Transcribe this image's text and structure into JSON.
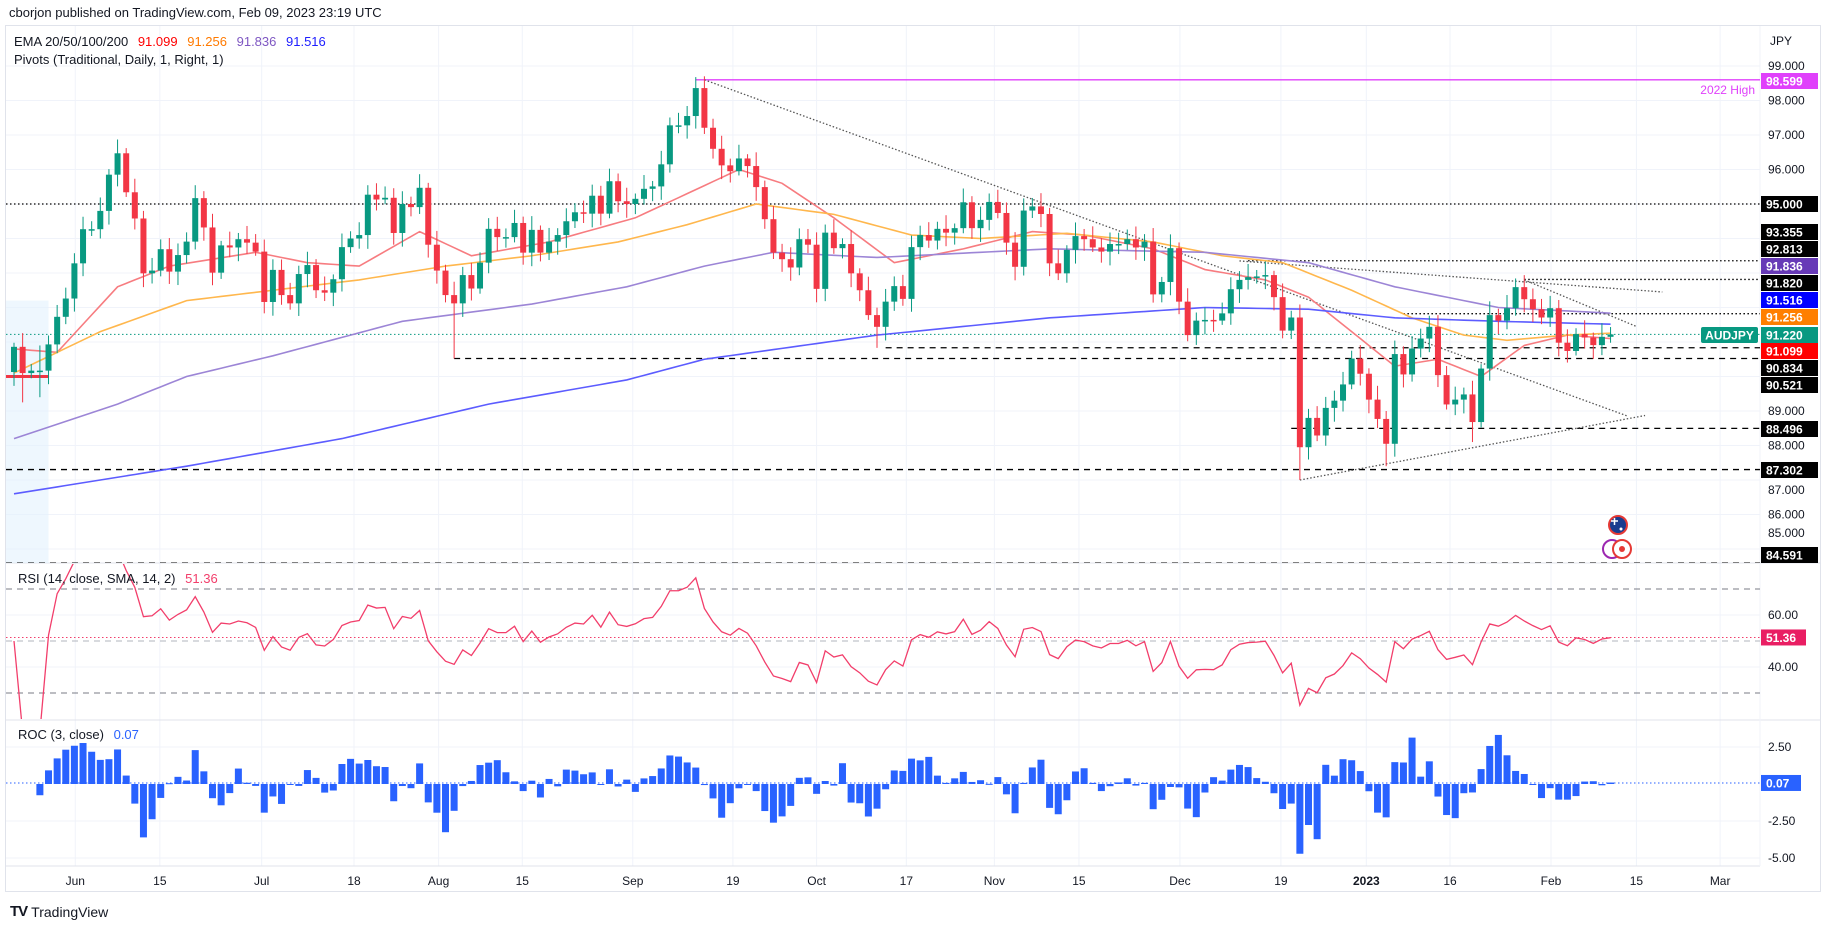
{
  "header": {
    "published": "cborjon published on TradingView.com, Feb 09, 2023 23:19 UTC"
  },
  "legend": {
    "ema_label": "EMA 20/50/100/200",
    "ema_values": [
      {
        "value": "91.099",
        "color": "#ff0000"
      },
      {
        "value": "91.256",
        "color": "#ff7a00"
      },
      {
        "value": "91.836",
        "color": "#7e57c2"
      },
      {
        "value": "91.516",
        "color": "#1e1eff"
      }
    ],
    "pivots_label": "Pivots (Traditional, Daily, 1, Right, 1)",
    "rsi_label": "RSI (14, close, SMA, 14, 2)",
    "rsi_value": "51.36",
    "roc_label": "ROC (3, close)",
    "roc_value": "0.07"
  },
  "footer": {
    "logo_mark": "TV",
    "brand": "TradingView"
  },
  "chart_data": {
    "type": "candlestick",
    "symbol": "AUDJPY",
    "currency": "JPY",
    "last_price": "91.220",
    "first_open": 90.13,
    "closes": [
      90.86,
      90.1,
      90.17,
      90.17,
      90.93,
      91.73,
      92.26,
      93.28,
      94.27,
      94.27,
      94.8,
      95.85,
      96.47,
      95.34,
      94.58,
      92.99,
      93.07,
      93.69,
      93.04,
      93.52,
      93.91,
      95.17,
      94.32,
      93.01,
      93.8,
      93.74,
      93.98,
      93.88,
      93.62,
      92.16,
      93.09,
      92.36,
      92.12,
      92.97,
      93.23,
      92.5,
      92.43,
      92.82,
      93.75,
      94.0,
      94.1,
      95.27,
      95.13,
      95.18,
      94.16,
      95.0,
      94.91,
      95.47,
      93.82,
      93.07,
      92.36,
      92.12,
      92.94,
      92.55,
      93.3,
      94.28,
      94.04,
      94.04,
      94.45,
      93.59,
      94.25,
      93.59,
      93.91,
      94.1,
      94.5,
      94.76,
      94.72,
      95.24,
      94.72,
      95.66,
      95.08,
      95.0,
      95.15,
      95.44,
      95.51,
      96.15,
      97.28,
      97.28,
      97.55,
      98.36,
      97.21,
      96.6,
      96.12,
      95.95,
      96.32,
      96.1,
      95.49,
      94.56,
      93.59,
      93.4,
      93.16,
      93.98,
      93.82,
      92.54,
      94.17,
      93.72,
      93.84,
      92.99,
      92.5,
      91.78,
      91.44,
      92.17,
      92.62,
      92.25,
      93.75,
      94.1,
      93.94,
      94.28,
      94.17,
      94.3,
      95.05,
      94.3,
      94.54,
      95.06,
      94.74,
      93.88,
      93.18,
      94.81,
      94.93,
      94.71,
      93.28,
      92.99,
      93.67,
      94.07,
      93.98,
      93.74,
      93.62,
      93.84,
      93.84,
      93.98,
      93.74,
      93.91,
      92.38,
      92.74,
      93.72,
      92.17,
      91.2,
      91.62,
      91.64,
      91.62,
      91.83,
      92.53,
      92.8,
      92.88,
      92.9,
      92.94,
      92.3,
      91.33,
      91.71,
      87.95,
      88.8,
      88.29,
      89.09,
      89.3,
      89.77,
      90.52,
      90.08,
      89.33,
      88.77,
      88.05,
      90.65,
      90.06,
      90.81,
      91.1,
      91.44,
      90.04,
      89.19,
      89.33,
      89.48,
      88.68,
      90.23,
      91.78,
      91.62,
      91.98,
      92.59,
      92.24,
      91.95,
      91.71,
      91.98,
      90.98,
      90.74,
      91.23,
      91.13,
      90.91,
      91.15,
      91.22
    ],
    "wick_overrides": {
      "1": [
        91.0,
        89.25
      ],
      "3": [
        90.9,
        89.4
      ],
      "12": [
        96.87,
        96.2
      ],
      "51": [
        92.5,
        90.52
      ],
      "79": [
        98.6,
        97.4
      ],
      "100": [
        91.9,
        90.83
      ],
      "149": [
        91.9,
        87.0
      ],
      "159": [
        89.0,
        87.4
      ],
      "169": [
        89.5,
        88.1
      ],
      "175": [
        92.8,
        92.1
      ]
    },
    "ema": [
      {
        "name": "EMA 20",
        "color": "#f77c80",
        "anchors": [
          [
            0,
            90.8
          ],
          [
            5,
            90.7
          ],
          [
            12,
            92.6
          ],
          [
            18,
            93.2
          ],
          [
            28,
            93.6
          ],
          [
            34,
            93.3
          ],
          [
            40,
            93.2
          ],
          [
            47,
            94.2
          ],
          [
            53,
            93.5
          ],
          [
            62,
            93.9
          ],
          [
            72,
            94.6
          ],
          [
            78,
            95.3
          ],
          [
            84,
            96.0
          ],
          [
            89,
            95.6
          ],
          [
            95,
            94.6
          ],
          [
            102,
            93.3
          ],
          [
            110,
            93.7
          ],
          [
            118,
            94.2
          ],
          [
            124,
            94.1
          ],
          [
            132,
            93.7
          ],
          [
            138,
            93.1
          ],
          [
            145,
            92.8
          ],
          [
            150,
            92.3
          ],
          [
            156,
            91.1
          ],
          [
            160,
            90.3
          ],
          [
            165,
            90.5
          ],
          [
            170,
            90.0
          ],
          [
            175,
            90.9
          ],
          [
            180,
            91.2
          ],
          [
            185,
            91.099
          ]
        ]
      },
      {
        "name": "EMA 50",
        "color": "#ffb74d",
        "anchors": [
          [
            0,
            90.1
          ],
          [
            10,
            91.3
          ],
          [
            20,
            92.2
          ],
          [
            30,
            92.5
          ],
          [
            40,
            92.8
          ],
          [
            50,
            93.2
          ],
          [
            60,
            93.5
          ],
          [
            70,
            93.9
          ],
          [
            78,
            94.4
          ],
          [
            86,
            95.0
          ],
          [
            95,
            94.7
          ],
          [
            104,
            94.1
          ],
          [
            112,
            94.0
          ],
          [
            122,
            94.15
          ],
          [
            132,
            93.9
          ],
          [
            140,
            93.5
          ],
          [
            147,
            93.3
          ],
          [
            155,
            92.5
          ],
          [
            162,
            91.7
          ],
          [
            168,
            91.2
          ],
          [
            173,
            91.05
          ],
          [
            180,
            91.2
          ],
          [
            185,
            91.256
          ]
        ]
      },
      {
        "name": "EMA 100",
        "color": "#9c85d6",
        "anchors": [
          [
            0,
            88.2
          ],
          [
            12,
            89.2
          ],
          [
            20,
            90.0
          ],
          [
            30,
            90.6
          ],
          [
            45,
            91.6
          ],
          [
            60,
            92.1
          ],
          [
            71,
            92.6
          ],
          [
            80,
            93.2
          ],
          [
            88,
            93.6
          ],
          [
            100,
            93.45
          ],
          [
            120,
            93.7
          ],
          [
            138,
            93.6
          ],
          [
            150,
            93.3
          ],
          [
            160,
            92.6
          ],
          [
            172,
            92.0
          ],
          [
            185,
            91.836
          ]
        ]
      },
      {
        "name": "EMA 200",
        "color": "#5c5cff",
        "anchors": [
          [
            0,
            86.6
          ],
          [
            20,
            87.4
          ],
          [
            38,
            88.2
          ],
          [
            55,
            89.2
          ],
          [
            71,
            89.9
          ],
          [
            80,
            90.5
          ],
          [
            100,
            91.2
          ],
          [
            120,
            91.7
          ],
          [
            138,
            92.0
          ],
          [
            150,
            91.95
          ],
          [
            160,
            91.7
          ],
          [
            172,
            91.6
          ],
          [
            185,
            91.516
          ]
        ]
      }
    ],
    "levels": [
      {
        "price": 98.599,
        "label": "98.599",
        "from_index": 79,
        "style": "solid",
        "color": "#e040fb",
        "note": "2022 High"
      },
      {
        "price": 95.0,
        "label": "95.000",
        "from_index": -2,
        "style": "dotted",
        "color": "#000000"
      },
      {
        "price": 93.355,
        "label": "93.355",
        "from_index": 143,
        "style": "dotted",
        "color": "#000000"
      },
      {
        "price": 92.813,
        "label": "92.813",
        "from_index": 175,
        "style": "dotted",
        "color": "#000000"
      },
      {
        "price": 91.82,
        "label": "91.820",
        "from_index": 161,
        "style": "dotted",
        "color": "#000000"
      },
      {
        "price": 90.834,
        "label": "90.834",
        "from_index": 101,
        "style": "dashed",
        "color": "#000000"
      },
      {
        "price": 90.521,
        "label": "90.521",
        "from_index": 51,
        "style": "dashed",
        "color": "#000000"
      },
      {
        "price": 88.496,
        "label": "88.496",
        "from_index": 148,
        "style": "dashed",
        "color": "#000000"
      },
      {
        "price": 87.302,
        "label": "87.302",
        "from_index": -2,
        "style": "dashed",
        "color": "#000000"
      },
      {
        "price": 84.591,
        "label": "84.591",
        "from_index": -2,
        "style": "dashed",
        "color": "#000000"
      }
    ],
    "price_badges": [
      {
        "label": "91.836",
        "price": 91.836,
        "bg": "#673ab7"
      },
      {
        "label": "91.516",
        "price": 91.516,
        "bg": "#0000ff"
      },
      {
        "label": "91.256",
        "price": 91.256,
        "bg": "#ff7f00"
      },
      {
        "label": "91.220",
        "price": 91.22,
        "bg": "#089981"
      },
      {
        "label": "91.099",
        "price": 91.099,
        "bg": "#ff0000"
      }
    ],
    "trendlines": [
      [
        80,
        98.6,
        187,
        88.85
      ],
      [
        149,
        87.0,
        189,
        88.87
      ],
      [
        142,
        93.35,
        191,
        92.45
      ],
      [
        175,
        92.8,
        188,
        91.45
      ]
    ],
    "pivot_zone": {
      "from_index": -1,
      "to_index": 4,
      "top": 92.2,
      "pivot": 90.0
    },
    "price_ticks": [
      "99.000",
      "98.000",
      "97.000",
      "96.000",
      "89.000",
      "88.000",
      "87.000",
      "86.000",
      "85.000"
    ],
    "price_axis_label": "JPY",
    "date_ticks": [
      {
        "label": "Jun",
        "index": 7.1
      },
      {
        "label": "15",
        "index": 16.9
      },
      {
        "label": "Jul",
        "index": 28.7
      },
      {
        "label": "18",
        "index": 39.4
      },
      {
        "label": "Aug",
        "index": 49.2
      },
      {
        "label": "15",
        "index": 58.9
      },
      {
        "label": "Sep",
        "index": 71.7
      },
      {
        "label": "19",
        "index": 83.3
      },
      {
        "label": "Oct",
        "index": 93.0
      },
      {
        "label": "17",
        "index": 103.4
      },
      {
        "label": "Nov",
        "index": 113.6
      },
      {
        "label": "15",
        "index": 123.4
      },
      {
        "label": "Dec",
        "index": 135.1
      },
      {
        "label": "19",
        "index": 146.8
      },
      {
        "label": "2023",
        "index": 156.7
      },
      {
        "label": "16",
        "index": 166.4
      },
      {
        "label": "Feb",
        "index": 178.1
      },
      {
        "label": "15",
        "index": 188.0
      },
      {
        "label": "Mar",
        "index": 197.7
      }
    ],
    "rsi": {
      "period": 14,
      "upper": 70,
      "middle": 50,
      "lower": 30,
      "ticks": [
        "60.00",
        "40.00"
      ],
      "tick_values": [
        60,
        40
      ],
      "last": 51.36,
      "color": "#f23e6b"
    },
    "roc": {
      "period": 3,
      "ticks": [
        "2.50",
        "-2.50",
        "-5.00"
      ],
      "tick_values": [
        2.5,
        -2.5,
        -5
      ],
      "last": 0.07,
      "color": "#2962ff"
    },
    "colors": {
      "up": "#089981",
      "down": "#f23645",
      "grid": "#f0f3fa"
    }
  }
}
